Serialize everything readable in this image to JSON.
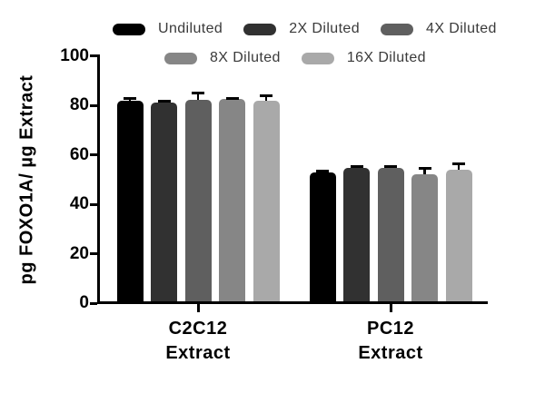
{
  "chart_data": {
    "type": "bar",
    "title": "",
    "xlabel": "",
    "ylabel": "pg FOXO1A/ µg Extract",
    "ylim": [
      0,
      100
    ],
    "yticks": [
      0,
      20,
      40,
      60,
      80,
      100
    ],
    "grid": false,
    "legend_position": "top",
    "groups": [
      {
        "line1": "C2C12",
        "line2": "Extract"
      },
      {
        "line1": "PC12",
        "line2": "Extract"
      }
    ],
    "series": [
      {
        "name": "Undiluted",
        "color": "#000000",
        "values": [
          81.8,
          52.9
        ],
        "errors": [
          0.8,
          0.4
        ]
      },
      {
        "name": "2X Diluted",
        "color": "#313131",
        "values": [
          81.0,
          54.8
        ],
        "errors": [
          0.5,
          0.5
        ]
      },
      {
        "name": "4X Diluted",
        "color": "#5f5f5f",
        "values": [
          82.3,
          54.7
        ],
        "errors": [
          2.8,
          0.6
        ]
      },
      {
        "name": "8X Diluted",
        "color": "#868686",
        "values": [
          82.4,
          52.2
        ],
        "errors": [
          0.5,
          2.2
        ]
      },
      {
        "name": "16X Diluted",
        "color": "#a9a9a9",
        "values": [
          81.9,
          53.8
        ],
        "errors": [
          1.9,
          2.7
        ]
      }
    ]
  }
}
